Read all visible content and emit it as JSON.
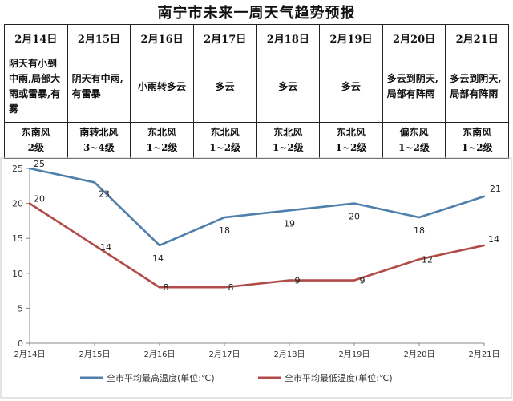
{
  "title": "南宁市未来一周天气趋势预报",
  "days": [
    {
      "date": "2月14日",
      "weather": "阴天有小到中雨,局部大雨或雷暴,有雾",
      "wind": "东南风",
      "level": "2级"
    },
    {
      "date": "2月15日",
      "weather": "阴天有中雨,有雷暴",
      "wind": "南转北风",
      "level": "3~4级"
    },
    {
      "date": "2月16日",
      "weather": "小雨转多云",
      "wind": "东北风",
      "level": "1~2级"
    },
    {
      "date": "2月17日",
      "weather": "多云",
      "wind": "东北风",
      "level": "1~2级"
    },
    {
      "date": "2月18日",
      "weather": "多云",
      "wind": "东北风",
      "level": "1~2级"
    },
    {
      "date": "2月19日",
      "weather": "多云",
      "wind": "东北风",
      "level": "1~2级"
    },
    {
      "date": "2月20日",
      "weather": "多云到阴天,局部有阵雨",
      "wind": "偏东风",
      "level": "1~2级"
    },
    {
      "date": "2月21日",
      "weather": "多云到阴天,局部有阵雨",
      "wind": "东南风",
      "level": "1~2级"
    }
  ],
  "chart_data": {
    "type": "line",
    "x": [
      "2月14日",
      "2月15日",
      "2月16日",
      "2月17日",
      "2月18日",
      "2月19日",
      "2月20日",
      "2月21日"
    ],
    "series": [
      {
        "name": "全市平均最高温度(单位:℃)",
        "values": [
          25,
          23,
          14,
          18,
          19,
          20,
          18,
          21
        ],
        "color": "#4f7fab"
      },
      {
        "name": "全市平均最低温度(单位:℃)",
        "values": [
          20,
          14,
          8,
          8,
          9,
          9,
          12,
          14
        ],
        "color": "#b04b48"
      }
    ],
    "yticks": [
      0,
      5,
      10,
      15,
      20,
      25
    ],
    "ylim": [
      0,
      25
    ],
    "grid": false,
    "legend": "bottom",
    "data_labels": true
  }
}
